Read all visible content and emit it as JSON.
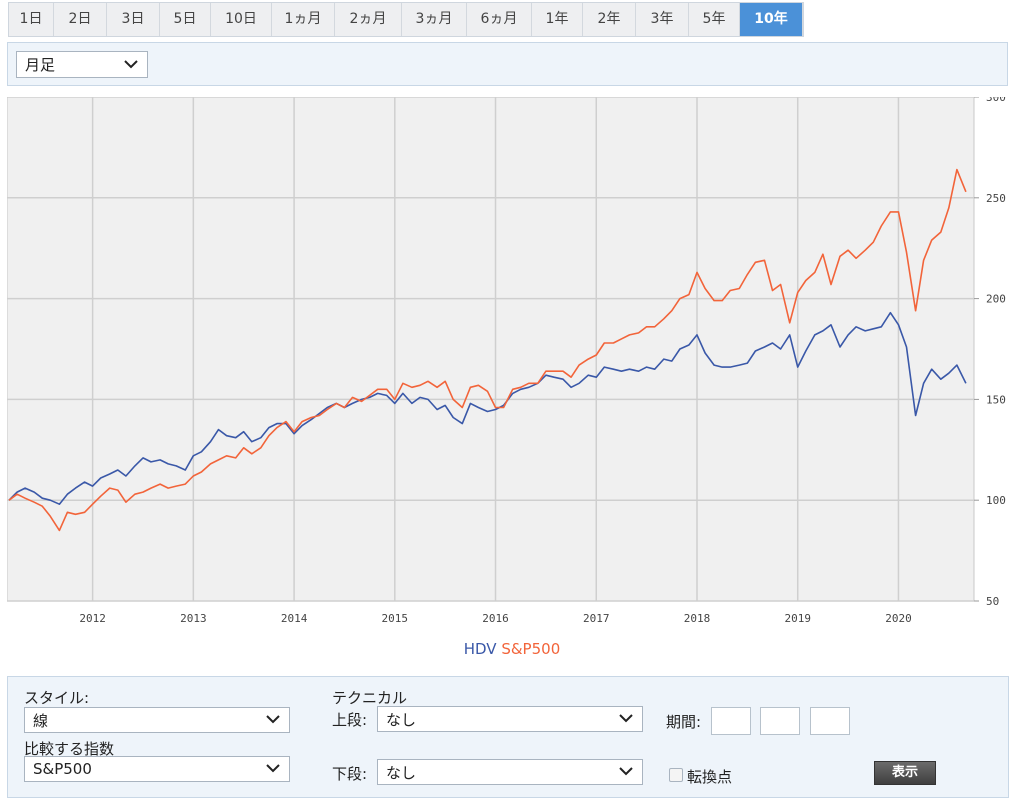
{
  "tabs": [
    {
      "label": "1日"
    },
    {
      "label": "2日"
    },
    {
      "label": "3日"
    },
    {
      "label": "5日"
    },
    {
      "label": "10日"
    },
    {
      "label": "1ヵ月"
    },
    {
      "label": "2ヵ月"
    },
    {
      "label": "3ヵ月"
    },
    {
      "label": "6ヵ月"
    },
    {
      "label": "1年"
    },
    {
      "label": "2年"
    },
    {
      "label": "3年"
    },
    {
      "label": "5年"
    },
    {
      "label": "10年",
      "active": true
    }
  ],
  "period_select": {
    "value": "月足"
  },
  "colors": {
    "hdv": "#3a58a8",
    "sp500": "#f2643a",
    "plot_bg": "#f0f0f0",
    "grid": "#cfcfcf",
    "accent": "#4b91d8"
  },
  "chart_data": {
    "type": "line",
    "title": "",
    "xlabel": "",
    "ylabel": "",
    "ylim": [
      50,
      300
    ],
    "xlim": [
      2011.15,
      2020.75
    ],
    "yticks": [
      50,
      100,
      150,
      200,
      250,
      300
    ],
    "xticks": [
      2012,
      2013,
      2014,
      2015,
      2016,
      2017,
      2018,
      2019,
      2020
    ],
    "grid": true,
    "legend_position": "bottom-center",
    "series": [
      {
        "name": "HDV",
        "color": "#3a58a8",
        "points": [
          [
            2011.17,
            100
          ],
          [
            2011.25,
            104
          ],
          [
            2011.33,
            106
          ],
          [
            2011.42,
            104
          ],
          [
            2011.5,
            101
          ],
          [
            2011.58,
            100
          ],
          [
            2011.67,
            98
          ],
          [
            2011.75,
            103
          ],
          [
            2011.83,
            106
          ],
          [
            2011.92,
            109
          ],
          [
            2012.0,
            107
          ],
          [
            2012.08,
            111
          ],
          [
            2012.17,
            113
          ],
          [
            2012.25,
            115
          ],
          [
            2012.33,
            112
          ],
          [
            2012.42,
            117
          ],
          [
            2012.5,
            121
          ],
          [
            2012.58,
            119
          ],
          [
            2012.67,
            120
          ],
          [
            2012.75,
            118
          ],
          [
            2012.83,
            117
          ],
          [
            2012.92,
            115
          ],
          [
            2013.0,
            122
          ],
          [
            2013.08,
            124
          ],
          [
            2013.17,
            129
          ],
          [
            2013.25,
            135
          ],
          [
            2013.33,
            132
          ],
          [
            2013.42,
            131
          ],
          [
            2013.5,
            134
          ],
          [
            2013.58,
            129
          ],
          [
            2013.67,
            131
          ],
          [
            2013.75,
            136
          ],
          [
            2013.83,
            138
          ],
          [
            2013.92,
            138
          ],
          [
            2014.0,
            133
          ],
          [
            2014.08,
            137
          ],
          [
            2014.17,
            140
          ],
          [
            2014.25,
            143
          ],
          [
            2014.33,
            146
          ],
          [
            2014.42,
            148
          ],
          [
            2014.5,
            146
          ],
          [
            2014.58,
            148
          ],
          [
            2014.67,
            150
          ],
          [
            2014.75,
            151
          ],
          [
            2014.83,
            153
          ],
          [
            2014.92,
            152
          ],
          [
            2015.0,
            148
          ],
          [
            2015.08,
            153
          ],
          [
            2015.17,
            148
          ],
          [
            2015.25,
            151
          ],
          [
            2015.33,
            150
          ],
          [
            2015.42,
            145
          ],
          [
            2015.5,
            147
          ],
          [
            2015.58,
            141
          ],
          [
            2015.67,
            138
          ],
          [
            2015.75,
            148
          ],
          [
            2015.83,
            146
          ],
          [
            2015.92,
            144
          ],
          [
            2016.0,
            145
          ],
          [
            2016.08,
            147
          ],
          [
            2016.17,
            153
          ],
          [
            2016.25,
            155
          ],
          [
            2016.33,
            156
          ],
          [
            2016.42,
            158
          ],
          [
            2016.5,
            162
          ],
          [
            2016.58,
            161
          ],
          [
            2016.67,
            160
          ],
          [
            2016.75,
            156
          ],
          [
            2016.83,
            158
          ],
          [
            2016.92,
            162
          ],
          [
            2017.0,
            161
          ],
          [
            2017.08,
            166
          ],
          [
            2017.17,
            165
          ],
          [
            2017.25,
            164
          ],
          [
            2017.33,
            165
          ],
          [
            2017.42,
            164
          ],
          [
            2017.5,
            166
          ],
          [
            2017.58,
            165
          ],
          [
            2017.67,
            170
          ],
          [
            2017.75,
            169
          ],
          [
            2017.83,
            175
          ],
          [
            2017.92,
            177
          ],
          [
            2018.0,
            182
          ],
          [
            2018.08,
            173
          ],
          [
            2018.17,
            167
          ],
          [
            2018.25,
            166
          ],
          [
            2018.33,
            166
          ],
          [
            2018.42,
            167
          ],
          [
            2018.5,
            168
          ],
          [
            2018.58,
            174
          ],
          [
            2018.67,
            176
          ],
          [
            2018.75,
            178
          ],
          [
            2018.83,
            175
          ],
          [
            2018.92,
            182
          ],
          [
            2019.0,
            166
          ],
          [
            2019.08,
            174
          ],
          [
            2019.17,
            182
          ],
          [
            2019.25,
            184
          ],
          [
            2019.33,
            187
          ],
          [
            2019.42,
            176
          ],
          [
            2019.5,
            182
          ],
          [
            2019.58,
            186
          ],
          [
            2019.67,
            184
          ],
          [
            2019.75,
            185
          ],
          [
            2019.83,
            186
          ],
          [
            2019.92,
            193
          ],
          [
            2020.0,
            187
          ],
          [
            2020.08,
            176
          ],
          [
            2020.17,
            142
          ],
          [
            2020.25,
            158
          ],
          [
            2020.33,
            165
          ],
          [
            2020.42,
            160
          ],
          [
            2020.5,
            163
          ],
          [
            2020.58,
            167
          ],
          [
            2020.67,
            158
          ]
        ]
      },
      {
        "name": "S&P500",
        "color": "#f2643a",
        "points": [
          [
            2011.17,
            100
          ],
          [
            2011.25,
            103
          ],
          [
            2011.33,
            101
          ],
          [
            2011.42,
            99
          ],
          [
            2011.5,
            97
          ],
          [
            2011.58,
            92
          ],
          [
            2011.67,
            85
          ],
          [
            2011.75,
            94
          ],
          [
            2011.83,
            93
          ],
          [
            2011.92,
            94
          ],
          [
            2012.0,
            98
          ],
          [
            2012.08,
            102
          ],
          [
            2012.17,
            106
          ],
          [
            2012.25,
            105
          ],
          [
            2012.33,
            99
          ],
          [
            2012.42,
            103
          ],
          [
            2012.5,
            104
          ],
          [
            2012.58,
            106
          ],
          [
            2012.67,
            108
          ],
          [
            2012.75,
            106
          ],
          [
            2012.83,
            107
          ],
          [
            2012.92,
            108
          ],
          [
            2013.0,
            112
          ],
          [
            2013.08,
            114
          ],
          [
            2013.17,
            118
          ],
          [
            2013.25,
            120
          ],
          [
            2013.33,
            122
          ],
          [
            2013.42,
            121
          ],
          [
            2013.5,
            126
          ],
          [
            2013.58,
            123
          ],
          [
            2013.67,
            126
          ],
          [
            2013.75,
            132
          ],
          [
            2013.83,
            136
          ],
          [
            2013.92,
            139
          ],
          [
            2014.0,
            134
          ],
          [
            2014.08,
            139
          ],
          [
            2014.17,
            141
          ],
          [
            2014.25,
            142
          ],
          [
            2014.33,
            145
          ],
          [
            2014.42,
            148
          ],
          [
            2014.5,
            146
          ],
          [
            2014.58,
            151
          ],
          [
            2014.67,
            149
          ],
          [
            2014.75,
            152
          ],
          [
            2014.83,
            155
          ],
          [
            2014.92,
            155
          ],
          [
            2015.0,
            150
          ],
          [
            2015.08,
            158
          ],
          [
            2015.17,
            156
          ],
          [
            2015.25,
            157
          ],
          [
            2015.33,
            159
          ],
          [
            2015.42,
            156
          ],
          [
            2015.5,
            159
          ],
          [
            2015.58,
            150
          ],
          [
            2015.67,
            146
          ],
          [
            2015.75,
            156
          ],
          [
            2015.83,
            157
          ],
          [
            2015.92,
            154
          ],
          [
            2016.0,
            146
          ],
          [
            2016.08,
            146
          ],
          [
            2016.17,
            155
          ],
          [
            2016.25,
            156
          ],
          [
            2016.33,
            158
          ],
          [
            2016.42,
            158
          ],
          [
            2016.5,
            164
          ],
          [
            2016.58,
            164
          ],
          [
            2016.67,
            164
          ],
          [
            2016.75,
            161
          ],
          [
            2016.83,
            167
          ],
          [
            2016.92,
            170
          ],
          [
            2017.0,
            172
          ],
          [
            2017.08,
            178
          ],
          [
            2017.17,
            178
          ],
          [
            2017.25,
            180
          ],
          [
            2017.33,
            182
          ],
          [
            2017.42,
            183
          ],
          [
            2017.5,
            186
          ],
          [
            2017.58,
            186
          ],
          [
            2017.67,
            190
          ],
          [
            2017.75,
            194
          ],
          [
            2017.83,
            200
          ],
          [
            2017.92,
            202
          ],
          [
            2018.0,
            213
          ],
          [
            2018.08,
            205
          ],
          [
            2018.17,
            199
          ],
          [
            2018.25,
            199
          ],
          [
            2018.33,
            204
          ],
          [
            2018.42,
            205
          ],
          [
            2018.5,
            212
          ],
          [
            2018.58,
            218
          ],
          [
            2018.67,
            219
          ],
          [
            2018.75,
            204
          ],
          [
            2018.83,
            207
          ],
          [
            2018.92,
            188
          ],
          [
            2019.0,
            203
          ],
          [
            2019.08,
            209
          ],
          [
            2019.17,
            213
          ],
          [
            2019.25,
            222
          ],
          [
            2019.33,
            207
          ],
          [
            2019.42,
            221
          ],
          [
            2019.5,
            224
          ],
          [
            2019.58,
            220
          ],
          [
            2019.67,
            224
          ],
          [
            2019.75,
            228
          ],
          [
            2019.83,
            236
          ],
          [
            2019.92,
            243
          ],
          [
            2020.0,
            243
          ],
          [
            2020.08,
            223
          ],
          [
            2020.17,
            194
          ],
          [
            2020.25,
            219
          ],
          [
            2020.33,
            229
          ],
          [
            2020.42,
            233
          ],
          [
            2020.5,
            245
          ],
          [
            2020.58,
            264
          ],
          [
            2020.67,
            253
          ]
        ]
      }
    ]
  },
  "controls": {
    "style_label": "スタイル:",
    "style_value": "線",
    "compare_label": "比較する指数",
    "compare_value": "S&P500",
    "technical_label": "テクニカル",
    "upper_label": "上段:",
    "upper_value": "なし",
    "lower_label": "下段:",
    "lower_value": "なし",
    "period_label": "期間:",
    "turning_label": "転換点",
    "show_button": "表示"
  }
}
